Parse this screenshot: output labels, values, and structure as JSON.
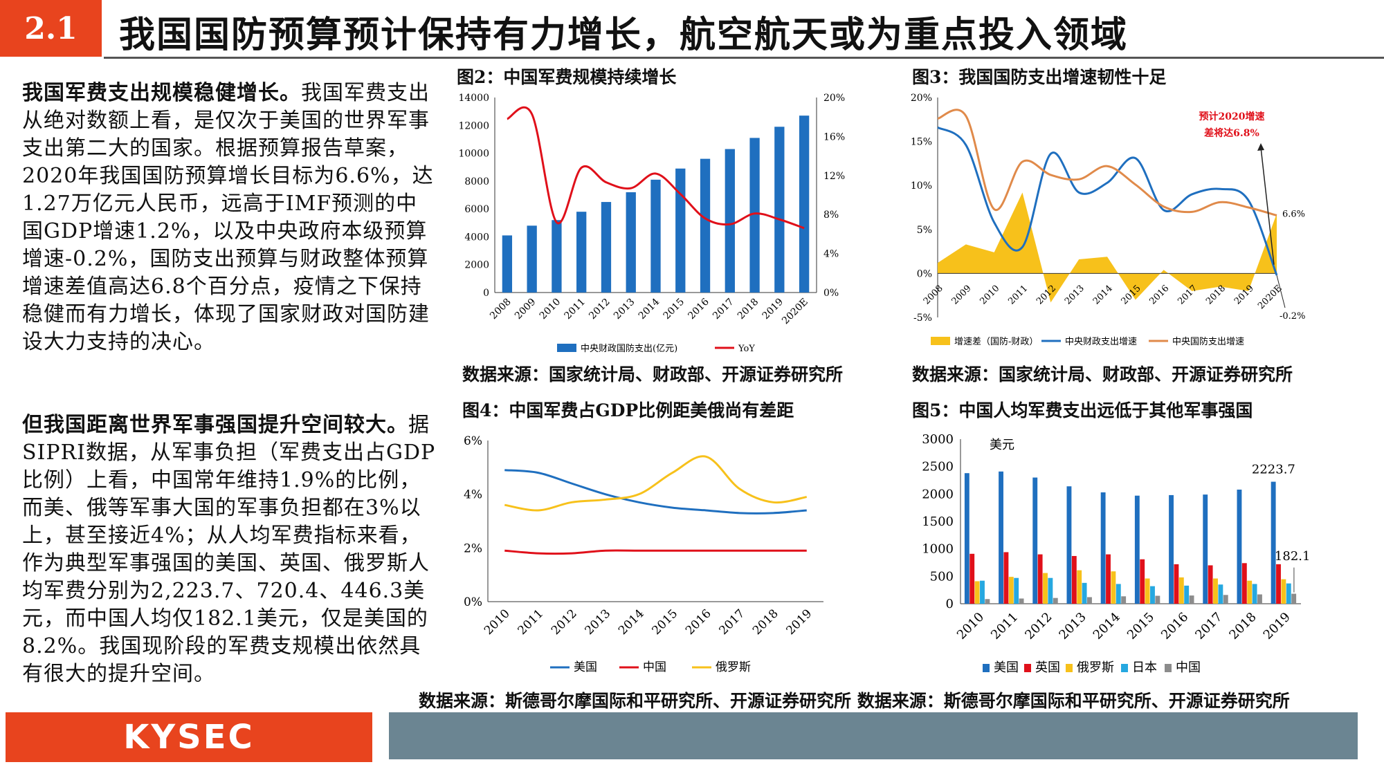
{
  "header": {
    "section": "2.1",
    "title": "我国国防预算预计保持有力增长，航空航天或为重点投入领域"
  },
  "text": {
    "p1_bold": "我国军费支出规模稳健增长。",
    "p1_rest": "我国军费支出从绝对数额上看，是仅次于美国的世界军事支出第二大的国家。根据预算报告草案，2020年我国国防预算增长目标为6.6%，达1.27万亿元人民币，远高于IMF预测的中国GDP增速1.2%，以及中央政府本级预算增速-0.2%，国防支出预算与财政整体预算增速差值高达6.8个百分点，疫情之下保持稳健而有力增长，体现了国家财政对国防建设大力支持的决心。",
    "p2_bold": "但我国距离世界军事强国提升空间较大。",
    "p2_rest": "据SIPRI数据，从军事负担（军费支出占GDP比例）上看，中国常年维持1.9%的比例，而美、俄等军事大国的军事负担都在3%以上，甚至接近4%；从人均军费指标来看，作为典型军事强国的美国、英国、俄罗斯人均军费分别为2,223.7、720.4、446.3美元，而中国人均仅182.1美元，仅是美国的8.2%。我国现阶段的军费支规模出依然具有很大的提升空间。"
  },
  "figures": {
    "fig2_title": "图2：中国军费规模持续增长",
    "fig3_title": "图3：我国国防支出增速韧性十足",
    "fig4_title": "图4：中国军费占GDP比例距美俄尚有差距",
    "fig5_title": "图5：中国人均军费支出远低于其他军事强国",
    "source_top_left": "数据来源：国家统计局、财政部、开源证券研究所",
    "source_top_right": "数据来源：国家统计局、财政部、开源证券研究所",
    "source_bottom": "数据来源：斯德哥尔摩国际和平研究所、开源证券研究所 数据来源：斯德哥尔摩国际和平研究所、开源证券研究所"
  },
  "footer": {
    "logo": "KYSEC"
  },
  "colors": {
    "accent": "#e8441e",
    "blue": "#1f6fbf",
    "red": "#e0101a",
    "orange": "#e08a4a",
    "yellow": "#f7c11b",
    "cyan": "#26a8e0",
    "gray": "#8c8c8c",
    "footer": "#6b8592"
  },
  "chart_data": [
    {
      "id": "fig2",
      "type": "bar+line",
      "categories": [
        "2008",
        "2009",
        "2010",
        "2011",
        "2012",
        "2013",
        "2014",
        "2015",
        "2016",
        "2017",
        "2018",
        "2019",
        "2020E"
      ],
      "series": [
        {
          "name": "中央财政国防支出(亿元)",
          "type": "bar",
          "axis": "left",
          "values": [
            4100,
            4800,
            5200,
            5800,
            6500,
            7200,
            8100,
            8900,
            9600,
            10300,
            11100,
            11900,
            12700
          ]
        },
        {
          "name": "YoY",
          "type": "line",
          "axis": "right",
          "values": [
            17.8,
            18.3,
            7.2,
            12.8,
            11.3,
            10.7,
            12.2,
            10.1,
            7.6,
            7.0,
            8.1,
            7.5,
            6.6
          ]
        }
      ],
      "left_ticks": [
        "0",
        "2000",
        "4000",
        "6000",
        "8000",
        "10000",
        "12000",
        "14000"
      ],
      "right_ticks": [
        "0%",
        "4%",
        "8%",
        "12%",
        "16%",
        "20%"
      ],
      "ylim_left": [
        0,
        14000
      ],
      "ylim_right": [
        0,
        20
      ]
    },
    {
      "id": "fig3",
      "type": "area+line",
      "categories": [
        "2008",
        "2009",
        "2010",
        "2011",
        "2012",
        "2013",
        "2014",
        "2015",
        "2016",
        "2017",
        "2018",
        "2019",
        "2020E"
      ],
      "series": [
        {
          "name": "增速差（国防-财政）",
          "type": "area",
          "values": [
            1.2,
            3.3,
            2.4,
            9.2,
            -3.3,
            1.6,
            1.9,
            -3.0,
            0.4,
            -2.0,
            -1.5,
            -2.0,
            6.8
          ]
        },
        {
          "name": "中央财政支出增速",
          "type": "line",
          "values": [
            16.6,
            14.6,
            5.8,
            3.0,
            13.6,
            9.2,
            10.3,
            13.1,
            7.2,
            9.0,
            9.6,
            8.3,
            -0.2
          ]
        },
        {
          "name": "中央国防支出增速",
          "type": "line",
          "values": [
            17.6,
            17.9,
            7.3,
            12.7,
            11.2,
            10.7,
            12.2,
            10.1,
            7.6,
            7.0,
            8.1,
            7.5,
            6.6
          ]
        }
      ],
      "y_ticks": [
        "-5%",
        "0%",
        "5%",
        "10%",
        "15%",
        "20%"
      ],
      "ylim": [
        -5,
        20
      ],
      "annotations": [
        "预计2020增速",
        "差将达6.8%",
        "6.6%",
        "-0.2%"
      ]
    },
    {
      "id": "fig4",
      "type": "line",
      "categories": [
        "2010",
        "2011",
        "2012",
        "2013",
        "2014",
        "2015",
        "2016",
        "2017",
        "2018",
        "2019"
      ],
      "series": [
        {
          "name": "美国",
          "values": [
            4.9,
            4.8,
            4.4,
            4.0,
            3.7,
            3.5,
            3.4,
            3.3,
            3.3,
            3.4
          ]
        },
        {
          "name": "中国",
          "values": [
            1.9,
            1.8,
            1.8,
            1.9,
            1.9,
            1.9,
            1.9,
            1.9,
            1.9,
            1.9
          ]
        },
        {
          "name": "俄罗斯",
          "values": [
            3.6,
            3.4,
            3.7,
            3.8,
            4.0,
            4.8,
            5.4,
            4.2,
            3.7,
            3.9
          ]
        }
      ],
      "y_ticks": [
        "0%",
        "2%",
        "4%",
        "6%"
      ],
      "ylim": [
        0,
        6
      ]
    },
    {
      "id": "fig5",
      "type": "bar",
      "categories": [
        "2010",
        "2011",
        "2012",
        "2013",
        "2014",
        "2015",
        "2016",
        "2017",
        "2018",
        "2019"
      ],
      "series": [
        {
          "name": "美国",
          "values": [
            2380,
            2410,
            2300,
            2140,
            2030,
            1970,
            1980,
            1990,
            2080,
            2223.7
          ]
        },
        {
          "name": "英国",
          "values": [
            910,
            940,
            900,
            870,
            900,
            810,
            720,
            700,
            740,
            720.4
          ]
        },
        {
          "name": "俄罗斯",
          "values": [
            410,
            490,
            560,
            610,
            590,
            460,
            480,
            460,
            420,
            446.3
          ]
        },
        {
          "name": "日本",
          "values": [
            420,
            470,
            470,
            380,
            360,
            320,
            330,
            350,
            360,
            370
          ]
        },
        {
          "name": "中国",
          "values": [
            85,
            95,
            105,
            120,
            135,
            145,
            150,
            160,
            170,
            182.1
          ]
        }
      ],
      "unit_label": "美元",
      "y_ticks": [
        "0",
        "500",
        "1000",
        "1500",
        "2000",
        "2500",
        "3000"
      ],
      "ylim": [
        0,
        3000
      ],
      "data_labels": [
        "2223.7",
        "182.1"
      ]
    }
  ]
}
